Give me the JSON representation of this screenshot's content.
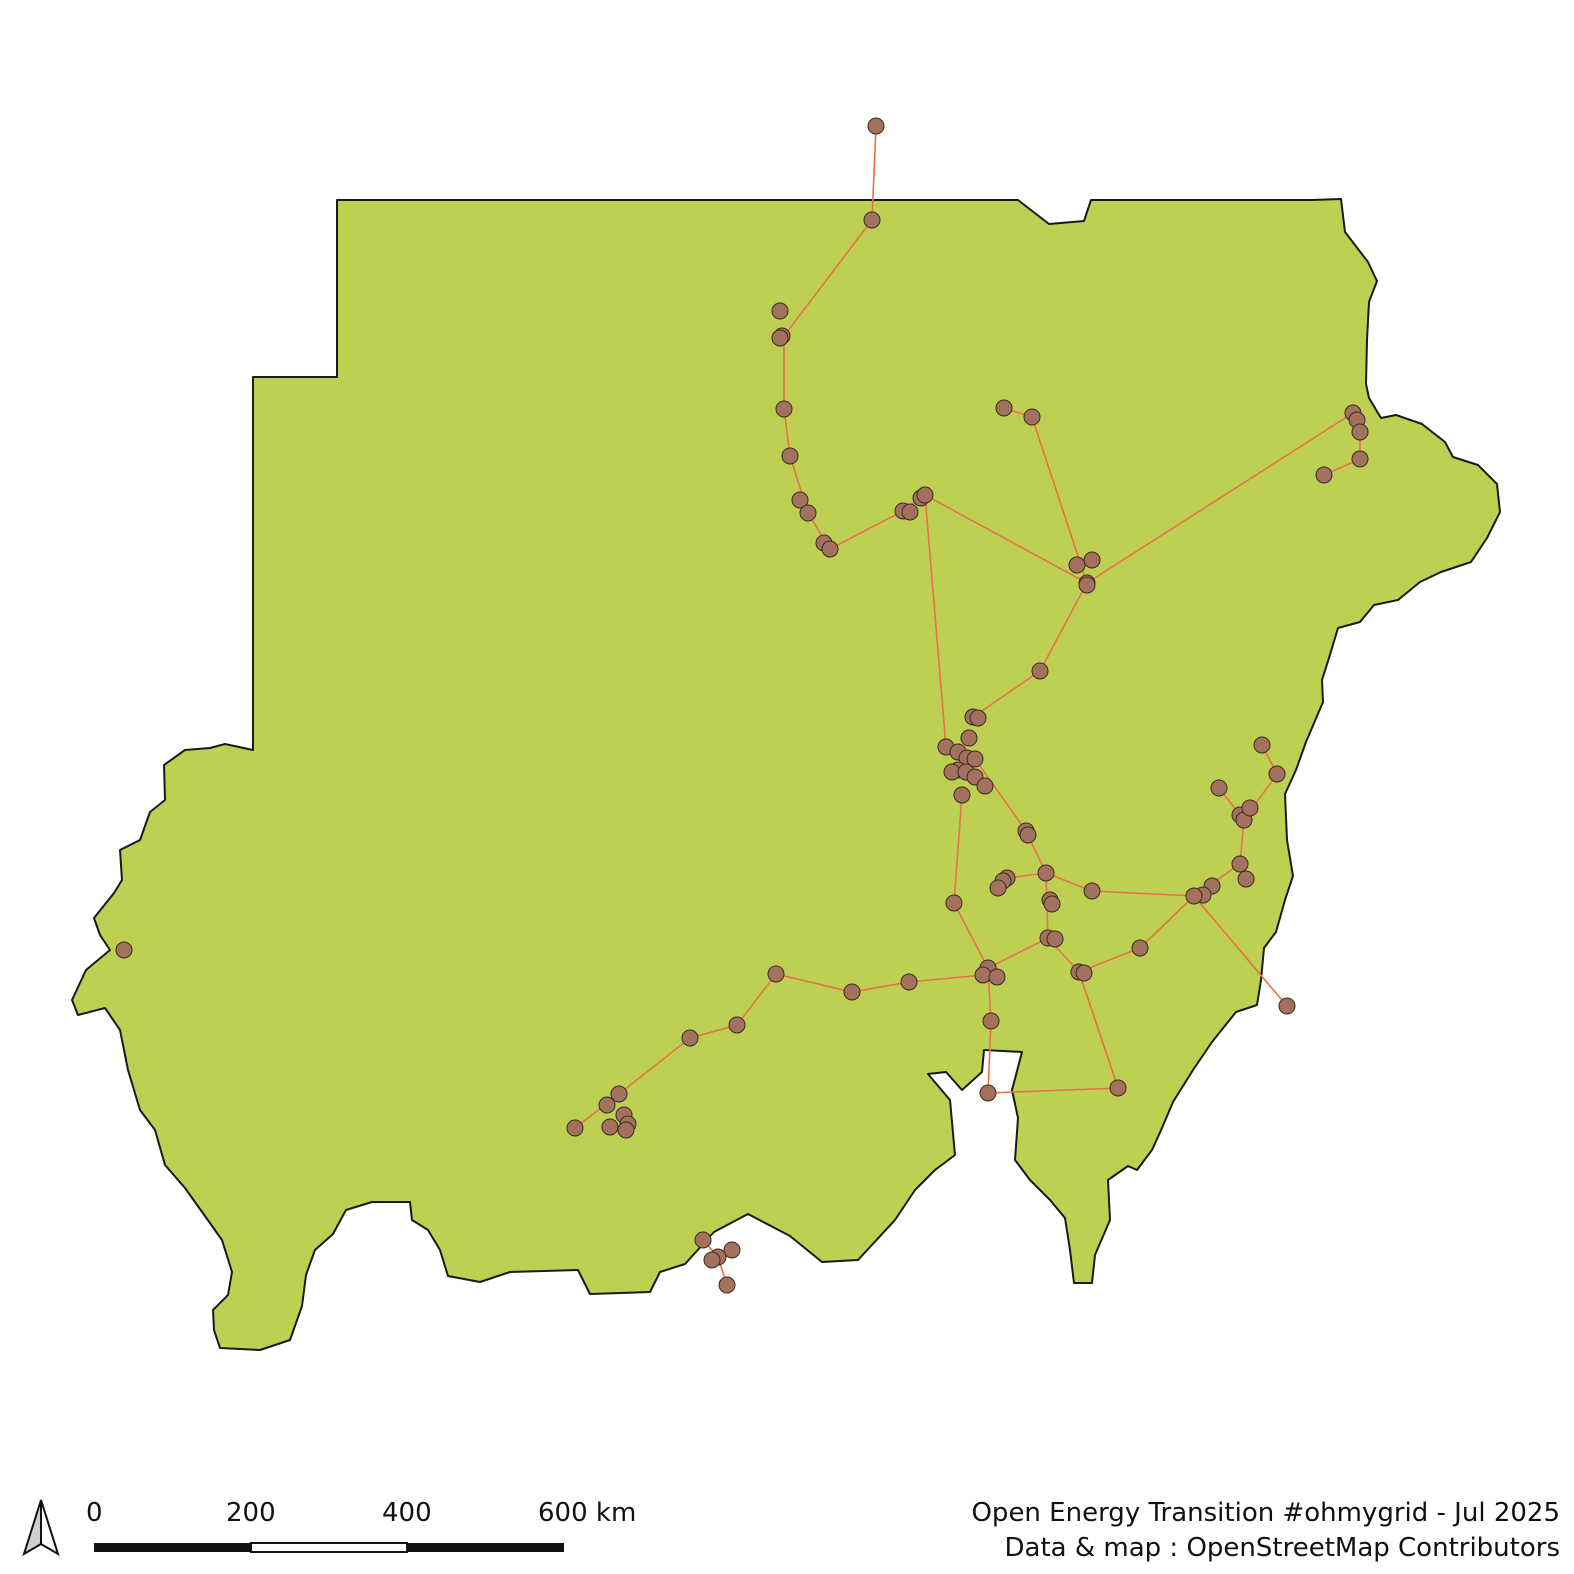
{
  "map": {
    "colors": {
      "land": "#bdd051",
      "border": "#1a1a1a",
      "power_line": "#e8704a",
      "substation": "#a3725f",
      "substation_outline": "#3a2a22"
    },
    "layers": [
      "country-polygon",
      "power-lines",
      "substations"
    ]
  },
  "north_arrow": {
    "icon": "north-arrow-icon"
  },
  "scale_bar": {
    "labels": [
      "0",
      "200",
      "400",
      "600 km"
    ]
  },
  "credits": {
    "line1": "Open Energy Transition #ohmygrid - Jul 2025",
    "line2": "Data & map : OpenStreetMap Contributors"
  }
}
